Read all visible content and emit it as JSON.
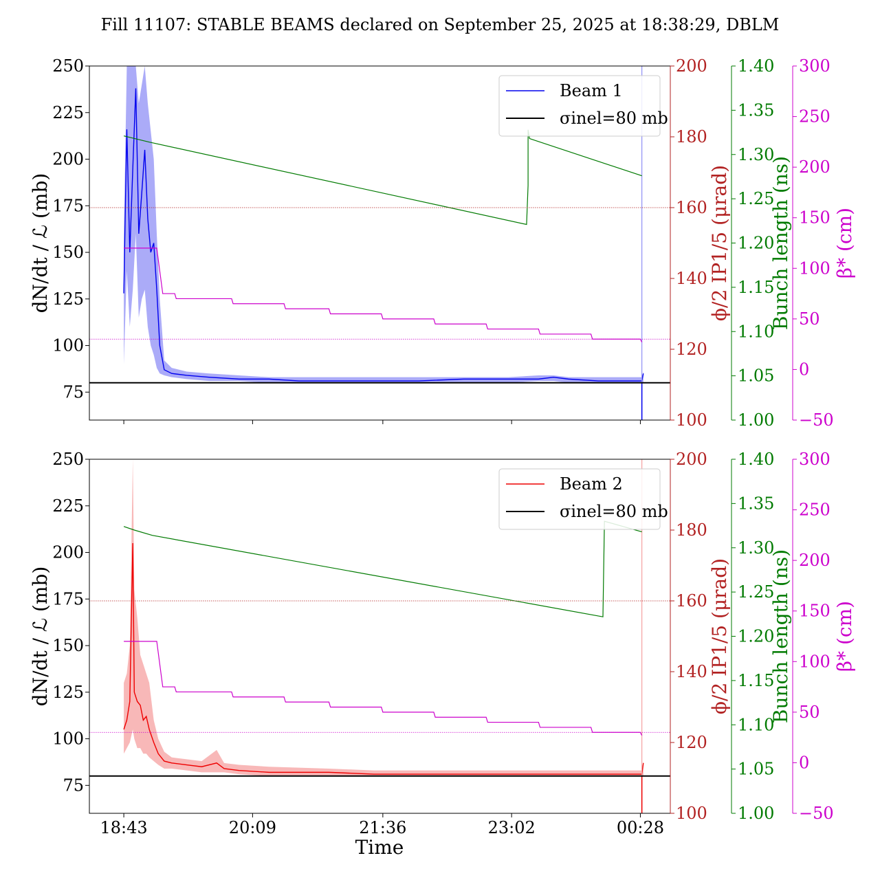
{
  "title": "Fill 11107: STABLE BEAMS declared on September 25, 2025 at 18:38:29, DBLM",
  "colors": {
    "beam1": "#0000ee",
    "beam1_band": "#8f8ff5",
    "beam2": "#ee0000",
    "beam2_band": "#f5a0a0",
    "sigma": "#000000",
    "phi": "#b22222",
    "bunch": "#007a00",
    "beta": "#cc00cc"
  },
  "chart_data": [
    {
      "type": "line",
      "panel": "top",
      "x_ticks": [
        "18:43",
        "20:09",
        "21:36",
        "23:02",
        "00:28"
      ],
      "x_range": [
        "18:20",
        "00:48"
      ],
      "x_tick_labels_shown": false,
      "y_left": {
        "label": "dN/dt / ℒ (mb)",
        "ticks": [
          75,
          100,
          125,
          150,
          175,
          200,
          225,
          250
        ],
        "range": [
          60,
          250
        ]
      },
      "y_phi": {
        "label": "ϕ/2 IP1/5 (μrad)",
        "ticks": [
          100,
          120,
          140,
          160,
          180,
          200
        ],
        "range": [
          100,
          200
        ]
      },
      "y_bunch": {
        "label": "Bunch length (ns)",
        "ticks": [
          "1.00",
          "1.05",
          "1.10",
          "1.15",
          "1.20",
          "1.25",
          "1.30",
          "1.35",
          "1.40"
        ],
        "range": [
          1.0,
          1.4
        ]
      },
      "y_beta": {
        "label": "β* (cm)",
        "ticks": [
          -50,
          0,
          50,
          100,
          150,
          200,
          250,
          300
        ],
        "range": [
          -50,
          300
        ]
      },
      "legend": {
        "placement": "top-right",
        "entries": [
          "Beam 1",
          "σinel=80 mb"
        ]
      },
      "sigma_inel": 80,
      "phi_level": 160,
      "beta_level": 30,
      "series": [
        {
          "name": "Beam 1",
          "axis": "left",
          "x": [
            "18:43",
            "18:45",
            "18:47",
            "18:49",
            "18:51",
            "18:53",
            "18:55",
            "18:57",
            "18:59",
            "19:01",
            "19:03",
            "19:05",
            "19:07",
            "19:10",
            "19:15",
            "19:25",
            "19:40",
            "20:00",
            "20:20",
            "20:40",
            "21:00",
            "21:30",
            "22:00",
            "22:30",
            "23:00",
            "23:20",
            "23:30",
            "23:40",
            "24:00",
            "24:15",
            "24:25",
            "24:29",
            "24:30"
          ],
          "y": [
            128,
            216,
            150,
            195,
            238,
            160,
            182,
            205,
            168,
            150,
            155,
            130,
            100,
            87,
            85,
            84,
            83,
            82,
            82,
            81,
            81,
            81,
            81,
            82,
            82,
            82,
            83,
            82,
            81,
            81,
            81,
            81,
            85
          ],
          "band_low": [
            90,
            140,
            110,
            130,
            160,
            115,
            125,
            130,
            110,
            100,
            95,
            88,
            85,
            84,
            83,
            82,
            81,
            81,
            80,
            80,
            80,
            80,
            80,
            80,
            80,
            81,
            81,
            80,
            80,
            80,
            80,
            80,
            80
          ],
          "band_high": [
            160,
            250,
            250,
            250,
            250,
            230,
            240,
            250,
            230,
            215,
            200,
            160,
            125,
            92,
            88,
            86,
            85,
            84,
            83,
            83,
            83,
            83,
            83,
            83,
            83,
            84,
            84,
            83,
            83,
            83,
            83,
            83,
            86
          ]
        },
        {
          "name": "Bunch length",
          "axis": "bunch",
          "x": [
            "18:43",
            "19:00",
            "23:12",
            "23:13",
            "23:13",
            "23:14",
            "24:29"
          ],
          "y": [
            1.321,
            1.314,
            1.221,
            1.265,
            1.328,
            1.318,
            1.276
          ]
        },
        {
          "name": "β*",
          "axis": "beta",
          "x": [
            "18:43",
            "19:05",
            "19:09",
            "19:17",
            "19:18",
            "19:55",
            "19:56",
            "20:30",
            "20:31",
            "21:00",
            "21:01",
            "21:35",
            "21:36",
            "22:10",
            "22:11",
            "22:45",
            "22:46",
            "23:20",
            "23:21",
            "23:55",
            "23:56",
            "24:28",
            "24:29"
          ],
          "y": [
            120,
            120,
            75,
            75,
            70,
            70,
            65,
            65,
            60,
            60,
            55,
            55,
            50,
            50,
            45,
            45,
            40,
            40,
            35,
            35,
            30,
            30,
            27
          ]
        }
      ]
    },
    {
      "type": "line",
      "panel": "bottom",
      "xlabel": "Time",
      "x_ticks": [
        "18:43",
        "20:09",
        "21:36",
        "23:02",
        "00:28"
      ],
      "x_range": [
        "18:20",
        "00:48"
      ],
      "x_tick_labels_shown": true,
      "y_left": {
        "label": "dN/dt / ℒ (mb)",
        "ticks": [
          75,
          100,
          125,
          150,
          175,
          200,
          225,
          250
        ],
        "range": [
          60,
          250
        ]
      },
      "y_phi": {
        "label": "ϕ/2 IP1/5 (μrad)",
        "ticks": [
          100,
          120,
          140,
          160,
          180,
          200
        ],
        "range": [
          100,
          200
        ]
      },
      "y_bunch": {
        "label": "Bunch length (ns)",
        "ticks": [
          "1.00",
          "1.05",
          "1.10",
          "1.15",
          "1.20",
          "1.25",
          "1.30",
          "1.35",
          "1.40"
        ],
        "range": [
          1.0,
          1.4
        ]
      },
      "y_beta": {
        "label": "β* (cm)",
        "ticks": [
          -50,
          0,
          50,
          100,
          150,
          200,
          250,
          300
        ],
        "range": [
          -50,
          300
        ]
      },
      "legend": {
        "placement": "top-right",
        "entries": [
          "Beam 2",
          "σinel=80 mb"
        ]
      },
      "sigma_inel": 80,
      "phi_level": 160,
      "beta_level": 30,
      "series": [
        {
          "name": "Beam 2",
          "axis": "left",
          "x": [
            "18:43",
            "18:45",
            "18:47",
            "18:49",
            "18:50",
            "18:52",
            "18:54",
            "18:56",
            "18:58",
            "19:00",
            "19:03",
            "19:06",
            "19:10",
            "19:15",
            "19:25",
            "19:35",
            "19:45",
            "19:50",
            "20:00",
            "20:20",
            "21:00",
            "21:30",
            "22:00",
            "22:30",
            "23:00",
            "23:30",
            "24:00",
            "24:20",
            "24:28",
            "24:29",
            "24:30"
          ],
          "y": [
            105,
            110,
            120,
            205,
            125,
            120,
            118,
            110,
            112,
            105,
            98,
            92,
            88,
            87,
            86,
            85,
            87,
            84,
            83,
            82,
            82,
            81,
            81,
            81,
            81,
            81,
            81,
            81,
            81,
            81,
            87
          ],
          "band_low": [
            92,
            95,
            98,
            105,
            100,
            95,
            95,
            92,
            92,
            90,
            88,
            86,
            84,
            84,
            83,
            82,
            82,
            82,
            81,
            80,
            80,
            80,
            80,
            80,
            80,
            80,
            80,
            80,
            80,
            80,
            80
          ],
          "band_high": [
            130,
            135,
            150,
            250,
            180,
            165,
            145,
            140,
            135,
            130,
            110,
            100,
            93,
            90,
            89,
            88,
            94,
            87,
            86,
            85,
            84,
            83,
            83,
            83,
            83,
            83,
            83,
            83,
            83,
            83,
            88
          ]
        },
        {
          "name": "Bunch length",
          "axis": "bunch",
          "x": [
            "18:43",
            "18:50",
            "19:02",
            "24:03",
            "24:04",
            "24:29"
          ],
          "y": [
            1.324,
            1.32,
            1.314,
            1.222,
            1.33,
            1.318
          ]
        },
        {
          "name": "β*",
          "axis": "beta",
          "x": [
            "18:43",
            "19:05",
            "19:09",
            "19:17",
            "19:18",
            "19:55",
            "19:56",
            "20:30",
            "20:31",
            "21:00",
            "21:01",
            "21:35",
            "21:36",
            "22:10",
            "22:11",
            "22:45",
            "22:46",
            "23:20",
            "23:21",
            "23:55",
            "23:56",
            "24:28",
            "24:29"
          ],
          "y": [
            120,
            120,
            75,
            75,
            70,
            70,
            65,
            65,
            60,
            60,
            55,
            55,
            50,
            50,
            45,
            45,
            40,
            40,
            35,
            35,
            30,
            30,
            27
          ]
        }
      ]
    }
  ]
}
